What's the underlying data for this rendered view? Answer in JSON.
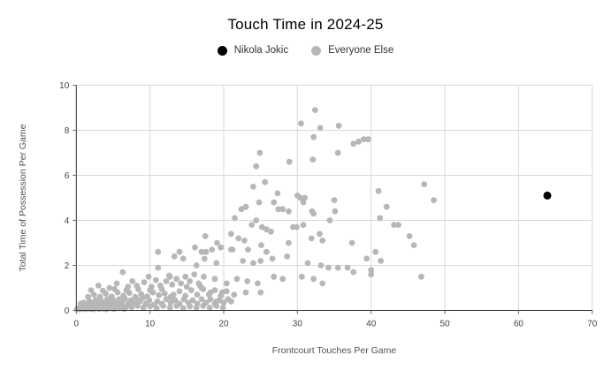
{
  "title": "Touch Time in 2024-25",
  "legend": {
    "items": [
      {
        "label": "Nikola Jokic",
        "color": "#000000"
      },
      {
        "label": "Everyone Else",
        "color": "#b7b7b7"
      }
    ]
  },
  "colors": {
    "background": "#ffffff",
    "gridline": "#d9d9d9",
    "axis_line": "#333333",
    "tick_text": "#444444",
    "jokic": "#000000",
    "everyone_else": "#b7b7b7"
  },
  "chart_data": {
    "type": "scatter",
    "title": "Touch Time in 2024-25",
    "xlabel": "Frontcourt Touches Per Game",
    "ylabel": "Total Time of Possession Per Game",
    "xlim": [
      0,
      70
    ],
    "ylim": [
      0,
      10
    ],
    "x_ticks": [
      0,
      10,
      20,
      30,
      40,
      50,
      60,
      70
    ],
    "y_ticks": [
      0,
      2,
      4,
      6,
      8,
      10
    ],
    "grid": true,
    "legend_position": "top-center",
    "series": [
      {
        "name": "Nikola Jokic",
        "color": "#000000",
        "marker_radius": 4.5,
        "points": [
          [
            63.9,
            5.1
          ]
        ]
      },
      {
        "name": "Everyone Else",
        "color": "#b7b7b7",
        "marker_radius": 3.4,
        "points": [
          [
            32.4,
            8.9
          ],
          [
            30.5,
            8.3
          ],
          [
            33.1,
            8.1
          ],
          [
            35.6,
            8.2
          ],
          [
            32.2,
            7.7
          ],
          [
            35.5,
            7.0
          ],
          [
            37.6,
            7.4
          ],
          [
            38.3,
            7.5
          ],
          [
            39.0,
            7.6
          ],
          [
            39.6,
            7.6
          ],
          [
            24.9,
            7.0
          ],
          [
            28.9,
            6.6
          ],
          [
            32.1,
            6.7
          ],
          [
            24.4,
            6.4
          ],
          [
            25.6,
            5.7
          ],
          [
            24.0,
            5.5
          ],
          [
            27.3,
            5.2
          ],
          [
            30.0,
            5.1
          ],
          [
            31.0,
            5.0
          ],
          [
            30.4,
            5.0
          ],
          [
            41.0,
            5.3
          ],
          [
            47.2,
            5.6
          ],
          [
            23.0,
            4.6
          ],
          [
            24.8,
            4.8
          ],
          [
            26.8,
            4.8
          ],
          [
            22.4,
            4.5
          ],
          [
            21.5,
            4.1
          ],
          [
            27.4,
            4.5
          ],
          [
            28.0,
            4.5
          ],
          [
            28.8,
            4.4
          ],
          [
            30.8,
            4.8
          ],
          [
            32.0,
            4.4
          ],
          [
            32.2,
            4.3
          ],
          [
            35.0,
            4.9
          ],
          [
            35.1,
            4.4
          ],
          [
            42.1,
            4.6
          ],
          [
            41.2,
            4.1
          ],
          [
            48.5,
            4.9
          ],
          [
            24.4,
            4.0
          ],
          [
            34.4,
            4.0
          ],
          [
            25.2,
            3.7
          ],
          [
            25.8,
            3.6
          ],
          [
            26.4,
            3.5
          ],
          [
            23.8,
            3.8
          ],
          [
            29.4,
            3.7
          ],
          [
            29.9,
            3.7
          ],
          [
            30.8,
            3.8
          ],
          [
            21.0,
            3.4
          ],
          [
            17.5,
            3.3
          ],
          [
            19.1,
            3.0
          ],
          [
            22.0,
            3.2
          ],
          [
            22.8,
            3.1
          ],
          [
            31.9,
            3.2
          ],
          [
            33.0,
            3.4
          ],
          [
            33.4,
            3.1
          ],
          [
            43.1,
            3.8
          ],
          [
            43.7,
            3.8
          ],
          [
            45.2,
            3.3
          ],
          [
            37.4,
            3.0
          ],
          [
            45.8,
            2.9
          ],
          [
            39.4,
            2.3
          ],
          [
            40.6,
            2.6
          ],
          [
            41.3,
            2.2
          ],
          [
            25.1,
            2.9
          ],
          [
            28.8,
            3.0
          ],
          [
            19.6,
            2.8
          ],
          [
            21.0,
            2.7
          ],
          [
            23.3,
            2.7
          ],
          [
            17.0,
            2.6
          ],
          [
            18.4,
            2.7
          ],
          [
            21.2,
            2.7
          ],
          [
            25.8,
            2.6
          ],
          [
            26.6,
            2.3
          ],
          [
            28.6,
            2.4
          ],
          [
            17.4,
            2.3
          ],
          [
            19.0,
            2.1
          ],
          [
            22.6,
            2.2
          ],
          [
            24.0,
            2.1
          ],
          [
            25.0,
            2.2
          ],
          [
            31.4,
            2.1
          ],
          [
            11.1,
            2.6
          ],
          [
            14.0,
            2.6
          ],
          [
            16.1,
            2.8
          ],
          [
            13.3,
            2.4
          ],
          [
            14.5,
            2.3
          ],
          [
            17.6,
            2.6
          ],
          [
            33.2,
            2.0
          ],
          [
            34.2,
            1.9
          ],
          [
            35.5,
            1.9
          ],
          [
            36.8,
            1.9
          ],
          [
            37.6,
            1.7
          ],
          [
            40.0,
            1.8
          ],
          [
            40.0,
            1.6
          ],
          [
            46.8,
            1.5
          ],
          [
            17.3,
            1.5
          ],
          [
            18.8,
            1.4
          ],
          [
            20.4,
            1.2
          ],
          [
            21.8,
            1.4
          ],
          [
            23.2,
            1.3
          ],
          [
            24.6,
            1.2
          ],
          [
            26.8,
            1.5
          ],
          [
            28.0,
            1.4
          ],
          [
            30.6,
            1.5
          ],
          [
            32.2,
            1.4
          ],
          [
            33.4,
            1.2
          ],
          [
            6.3,
            1.7
          ],
          [
            16.3,
            2.0
          ],
          [
            11.1,
            1.9
          ],
          [
            12.7,
            1.5
          ],
          [
            17.0,
            1.0
          ],
          [
            18.2,
            0.8
          ],
          [
            19.8,
            0.8
          ],
          [
            21.4,
            0.7
          ],
          [
            23.0,
            0.8
          ],
          [
            25.0,
            0.8
          ],
          [
            19.0,
            0.4
          ],
          [
            21.0,
            0.4
          ],
          [
            0.1,
            0.05
          ],
          [
            0.3,
            0.1
          ],
          [
            0.5,
            0.05
          ],
          [
            0.7,
            0.15
          ],
          [
            0.9,
            0.08
          ],
          [
            1.1,
            0.18
          ],
          [
            1.3,
            0.06
          ],
          [
            1.5,
            0.12
          ],
          [
            1.7,
            0.2
          ],
          [
            1.9,
            0.07
          ],
          [
            2.1,
            0.15
          ],
          [
            2.3,
            0.05
          ],
          [
            2.5,
            0.22
          ],
          [
            2.7,
            0.1
          ],
          [
            2.9,
            0.18
          ],
          [
            3.1,
            0.06
          ],
          [
            3.3,
            0.14
          ],
          [
            3.5,
            0.24
          ],
          [
            3.7,
            0.08
          ],
          [
            3.9,
            0.18
          ],
          [
            4.1,
            0.05
          ],
          [
            4.3,
            0.15
          ],
          [
            4.5,
            0.25
          ],
          [
            4.7,
            0.1
          ],
          [
            4.9,
            0.2
          ],
          [
            5.1,
            0.06
          ],
          [
            5.3,
            0.16
          ],
          [
            5.6,
            0.26
          ],
          [
            5.9,
            0.1
          ],
          [
            6.2,
            0.2
          ],
          [
            6.5,
            0.07
          ],
          [
            6.8,
            0.16
          ],
          [
            0.6,
            0.3
          ],
          [
            1.0,
            0.35
          ],
          [
            1.4,
            0.28
          ],
          [
            1.8,
            0.4
          ],
          [
            2.2,
            0.32
          ],
          [
            2.6,
            0.45
          ],
          [
            3.0,
            0.3
          ],
          [
            3.4,
            0.42
          ],
          [
            3.8,
            0.35
          ],
          [
            4.2,
            0.5
          ],
          [
            4.6,
            0.38
          ],
          [
            5.0,
            0.45
          ],
          [
            5.4,
            0.3
          ],
          [
            5.8,
            0.5
          ],
          [
            6.2,
            0.4
          ],
          [
            6.6,
            0.52
          ],
          [
            7.0,
            0.3
          ],
          [
            7.4,
            0.45
          ],
          [
            7.8,
            0.35
          ],
          [
            8.2,
            0.5
          ],
          [
            8.6,
            0.4
          ],
          [
            9.0,
            0.55
          ],
          [
            1.6,
            0.6
          ],
          [
            2.4,
            0.7
          ],
          [
            3.2,
            0.6
          ],
          [
            4.0,
            0.75
          ],
          [
            4.8,
            0.62
          ],
          [
            5.6,
            0.8
          ],
          [
            6.4,
            0.65
          ],
          [
            7.2,
            0.78
          ],
          [
            8.0,
            0.6
          ],
          [
            8.8,
            0.72
          ],
          [
            9.6,
            0.62
          ],
          [
            10.4,
            0.8
          ],
          [
            11.2,
            0.68
          ],
          [
            12.0,
            0.75
          ],
          [
            12.8,
            0.6
          ],
          [
            2.0,
            0.9
          ],
          [
            3.6,
            0.88
          ],
          [
            5.2,
            0.95
          ],
          [
            6.8,
            0.9
          ],
          [
            8.4,
            0.95
          ],
          [
            10.0,
            0.9
          ],
          [
            11.6,
            0.95
          ],
          [
            3.0,
            1.1
          ],
          [
            4.5,
            1.0
          ],
          [
            5.5,
            1.2
          ],
          [
            7.0,
            1.05
          ],
          [
            7.6,
            1.3
          ],
          [
            8.2,
            1.1
          ],
          [
            9.2,
            1.25
          ],
          [
            10.2,
            1.05
          ],
          [
            10.8,
            1.35
          ],
          [
            11.4,
            1.1
          ],
          [
            12.2,
            1.3
          ],
          [
            13.0,
            1.15
          ],
          [
            13.6,
            1.4
          ],
          [
            14.2,
            1.2
          ],
          [
            14.8,
            1.5
          ],
          [
            15.4,
            1.3
          ],
          [
            16.0,
            1.6
          ],
          [
            16.6,
            1.2
          ],
          [
            9.8,
            1.5
          ],
          [
            12.6,
            1.55
          ],
          [
            9.4,
            0.3
          ],
          [
            9.9,
            0.45
          ],
          [
            10.5,
            0.25
          ],
          [
            11.0,
            0.4
          ],
          [
            11.6,
            0.3
          ],
          [
            12.2,
            0.5
          ],
          [
            12.8,
            0.35
          ],
          [
            13.4,
            0.45
          ],
          [
            14.0,
            0.3
          ],
          [
            14.6,
            0.5
          ],
          [
            15.2,
            0.35
          ],
          [
            15.8,
            0.45
          ],
          [
            16.4,
            0.3
          ],
          [
            17.0,
            0.5
          ],
          [
            17.6,
            0.35
          ],
          [
            18.2,
            0.5
          ],
          [
            18.8,
            0.3
          ],
          [
            19.4,
            0.45
          ],
          [
            20.0,
            0.35
          ],
          [
            20.6,
            0.5
          ],
          [
            13.2,
            0.7
          ],
          [
            14.0,
            0.85
          ],
          [
            14.8,
            0.65
          ],
          [
            15.6,
            0.9
          ],
          [
            16.4,
            0.7
          ],
          [
            17.2,
            0.95
          ],
          [
            18.0,
            0.7
          ],
          [
            18.8,
            0.9
          ],
          [
            19.6,
            0.65
          ],
          [
            20.4,
            0.85
          ],
          [
            15.0,
            1.05
          ],
          [
            16.8,
            1.1
          ],
          [
            7.5,
            0.15
          ],
          [
            8.3,
            0.2
          ],
          [
            9.1,
            0.12
          ],
          [
            10.0,
            0.18
          ],
          [
            10.9,
            0.1
          ],
          [
            11.8,
            0.2
          ],
          [
            12.7,
            0.12
          ],
          [
            13.6,
            0.2
          ],
          [
            14.5,
            0.1
          ],
          [
            15.4,
            0.18
          ],
          [
            16.3,
            0.12
          ],
          [
            17.2,
            0.2
          ],
          [
            18.1,
            0.12
          ],
          [
            19.0,
            0.2
          ],
          [
            19.9,
            0.12
          ]
        ]
      }
    ]
  }
}
